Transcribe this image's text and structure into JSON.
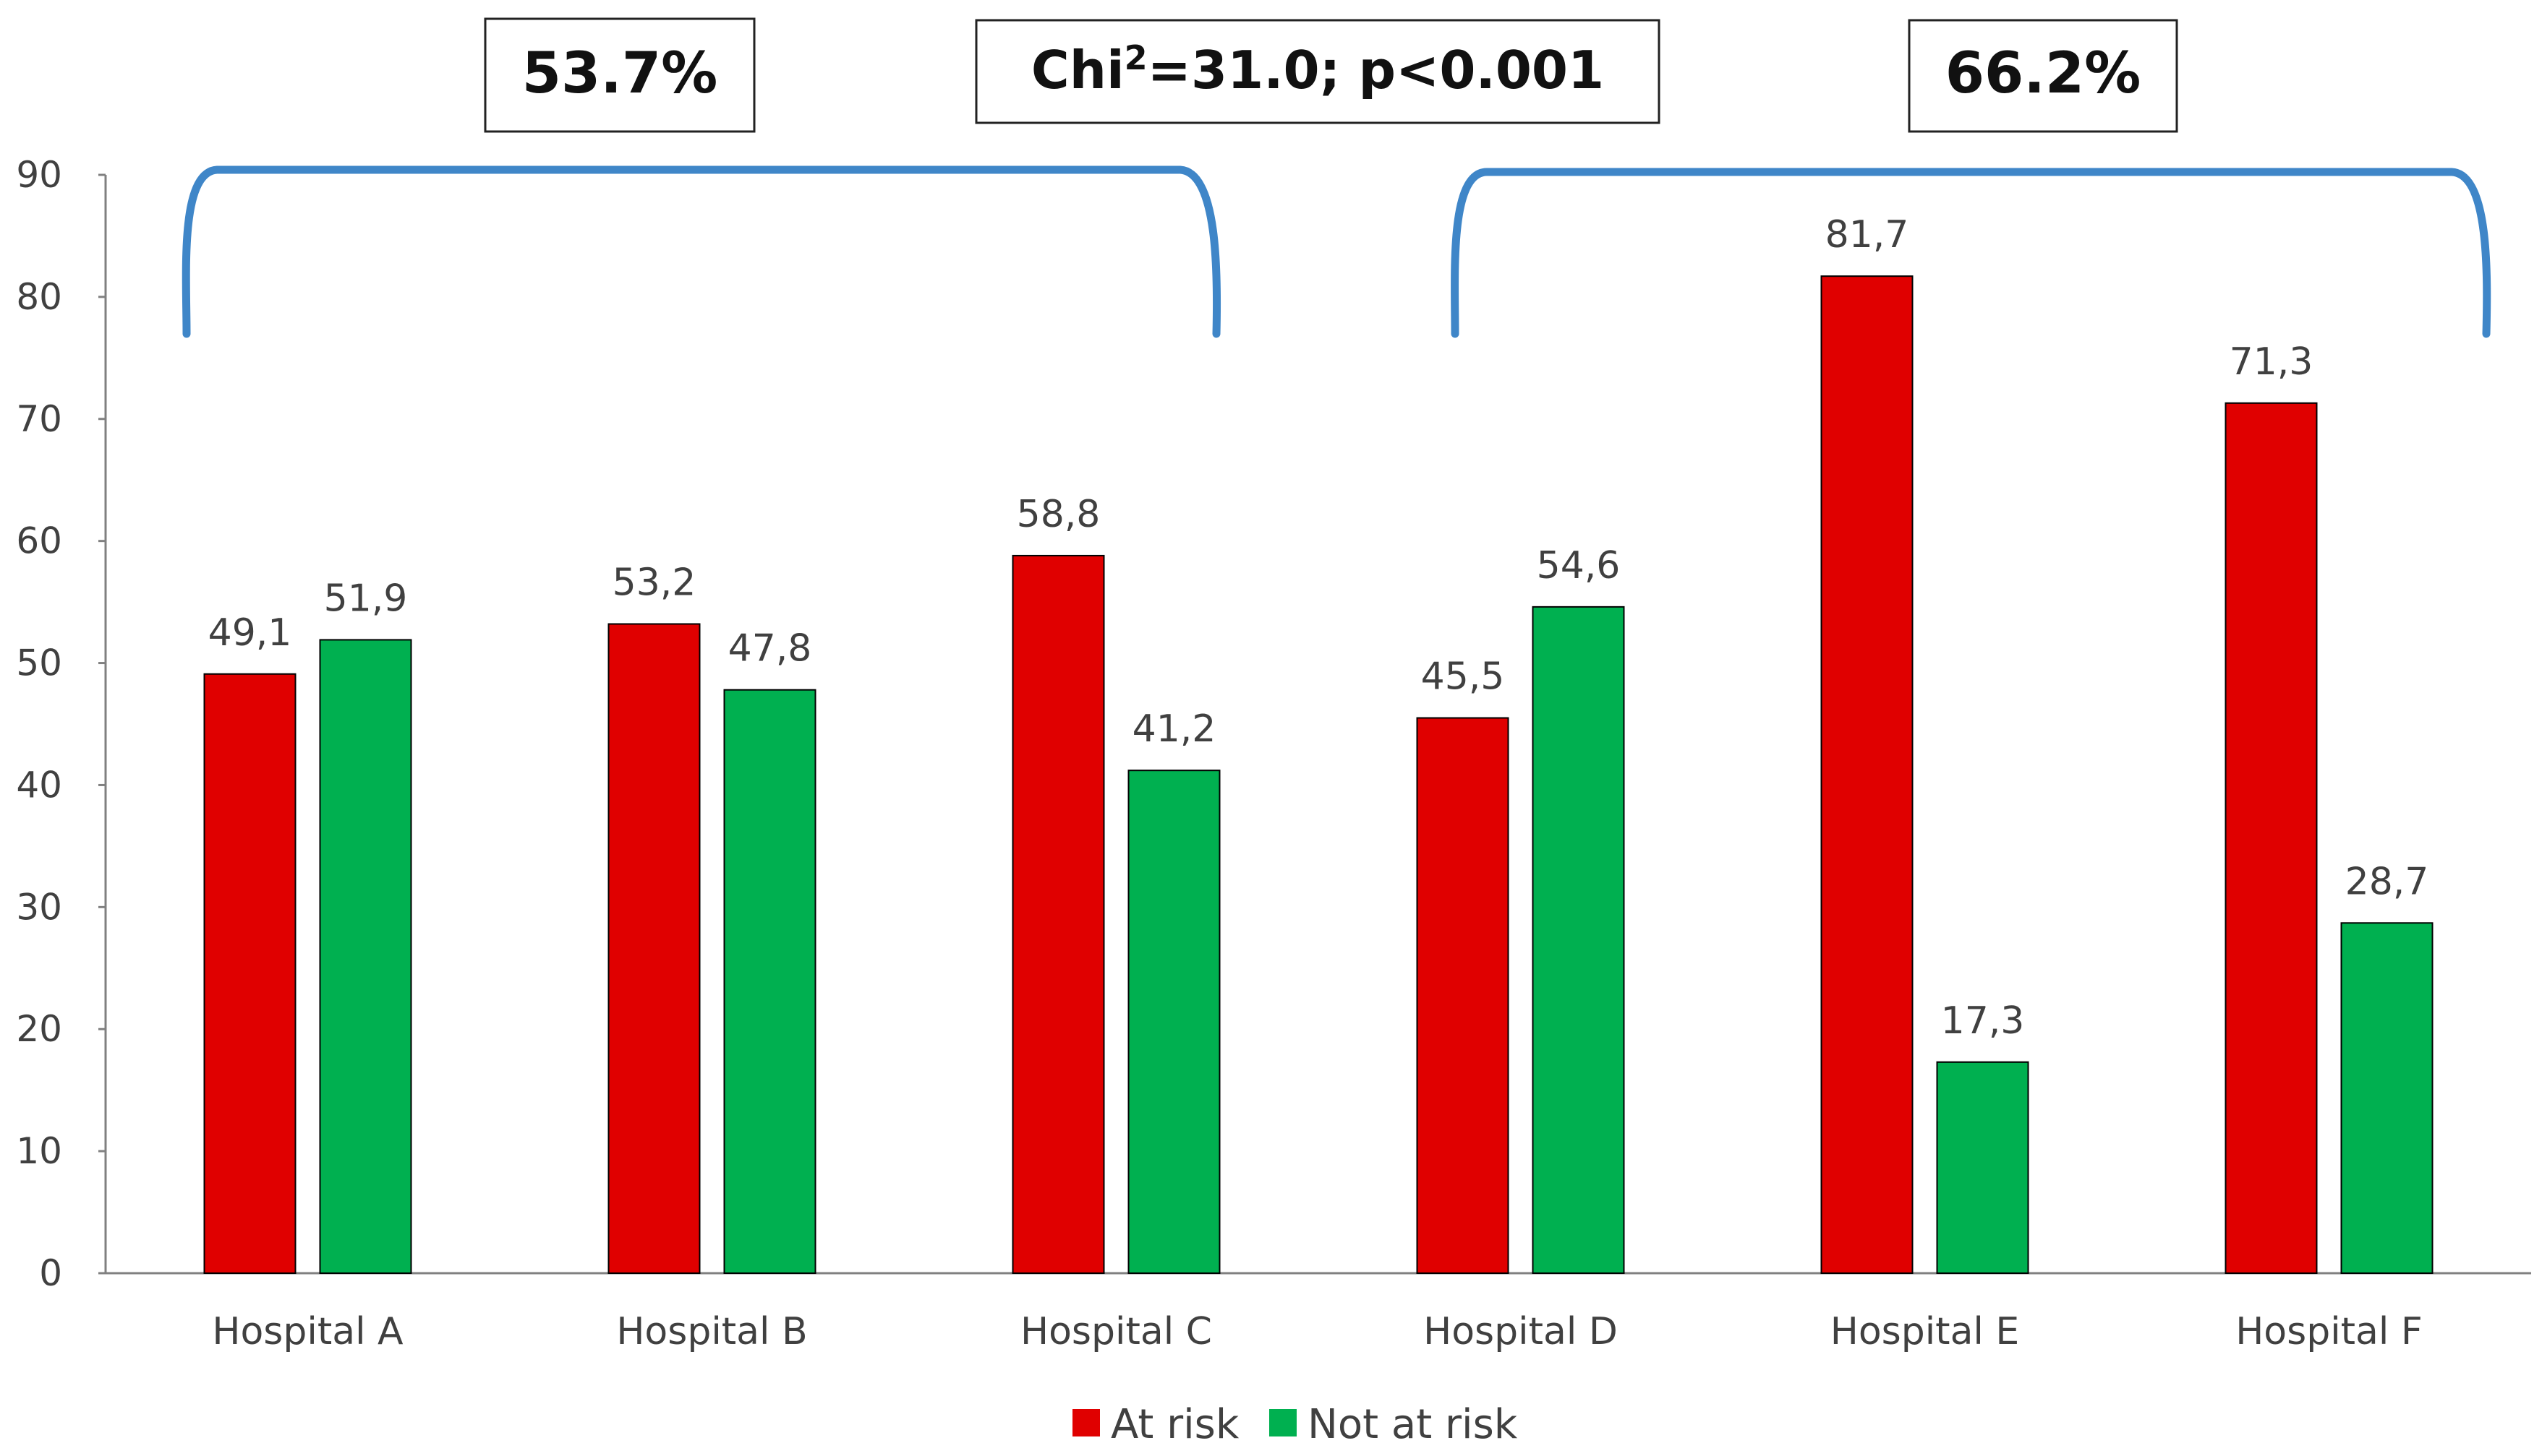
{
  "chart_data": {
    "type": "bar",
    "categories": [
      "Hospital A",
      "Hospital B",
      "Hospital C",
      "Hospital D",
      "Hospital E",
      "Hospital F"
    ],
    "series": [
      {
        "name": "At risk",
        "color": "#E00000",
        "values": [
          49.1,
          53.2,
          58.8,
          45.5,
          81.7,
          71.3
        ],
        "labels": [
          "49,1",
          "53,2",
          "58,8",
          "45,5",
          "81,7",
          "71,3"
        ]
      },
      {
        "name": "Not at risk",
        "color": "#00B050",
        "values": [
          51.9,
          47.8,
          41.2,
          54.6,
          17.3,
          28.7
        ],
        "labels": [
          "51,9",
          "47,8",
          "41,2",
          "54,6",
          "17,3",
          "28,7"
        ]
      }
    ],
    "ylim": [
      0,
      90
    ],
    "yticks": [
      0,
      10,
      20,
      30,
      40,
      50,
      60,
      70,
      80,
      90
    ],
    "legend_position": "bottom",
    "title": "",
    "xlabel": "",
    "ylabel": "",
    "annotations": {
      "group_left": {
        "label": "53.7%",
        "categories": [
          "Hospital A",
          "Hospital B",
          "Hospital C"
        ]
      },
      "group_right": {
        "label": "66.2%",
        "categories": [
          "Hospital D",
          "Hospital E",
          "Hospital F"
        ]
      },
      "test": {
        "prefix": "Chi",
        "superscript": "2",
        "suffix": "=31.0; p<0.001"
      }
    },
    "bracket_color": "#3F86C8"
  }
}
